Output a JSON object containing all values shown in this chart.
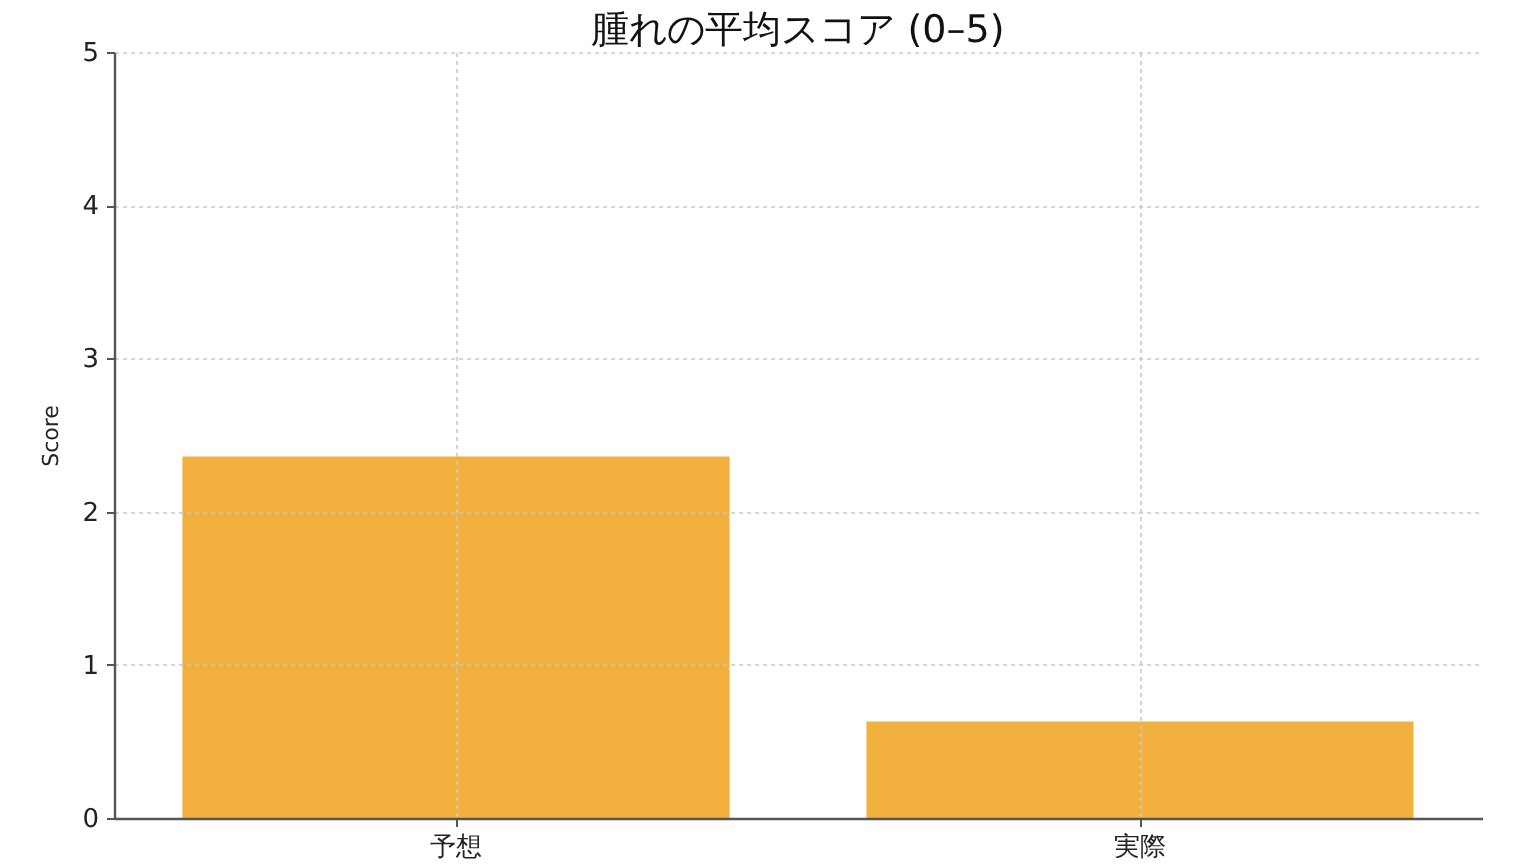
{
  "chart_data": {
    "type": "bar",
    "title": "腫れの平均スコア (0–5)",
    "ylabel": "Score",
    "categories": [
      "予想",
      "実際"
    ],
    "values": [
      2.36,
      0.63
    ],
    "color": "#f2b13f",
    "ylim": [
      0,
      5
    ],
    "yticks": [
      0,
      1,
      2,
      3,
      4,
      5
    ],
    "grid": true
  }
}
